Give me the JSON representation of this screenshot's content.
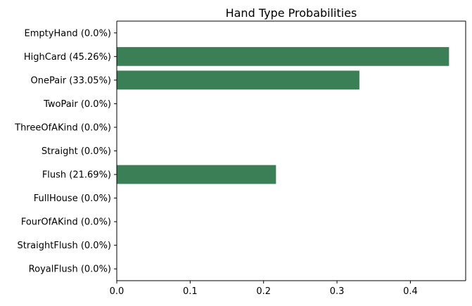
{
  "chart_data": {
    "type": "bar",
    "orientation": "horizontal",
    "title": "Hand Type Probabilities",
    "xlabel": "",
    "ylabel": "",
    "categories": [
      "EmptyHand (0.0%)",
      "HighCard (45.26%)",
      "OnePair (33.05%)",
      "TwoPair (0.0%)",
      "ThreeOfAKind (0.0%)",
      "Straight (0.0%)",
      "Flush (21.69%)",
      "FullHouse (0.0%)",
      "FourOfAKind (0.0%)",
      "StraightFlush (0.0%)",
      "RoyalFlush (0.0%)"
    ],
    "values": [
      0.0,
      0.4526,
      0.3305,
      0.0,
      0.0,
      0.0,
      0.2169,
      0.0,
      0.0,
      0.0,
      0.0
    ],
    "xlim": [
      0,
      0.4753
    ],
    "xticks": [
      "0.0",
      "0.1",
      "0.2",
      "0.3",
      "0.4"
    ],
    "xtick_values": [
      0.0,
      0.1,
      0.2,
      0.3,
      0.4
    ],
    "bar_color": "#3b7f57",
    "grid": false,
    "legend": "none"
  }
}
